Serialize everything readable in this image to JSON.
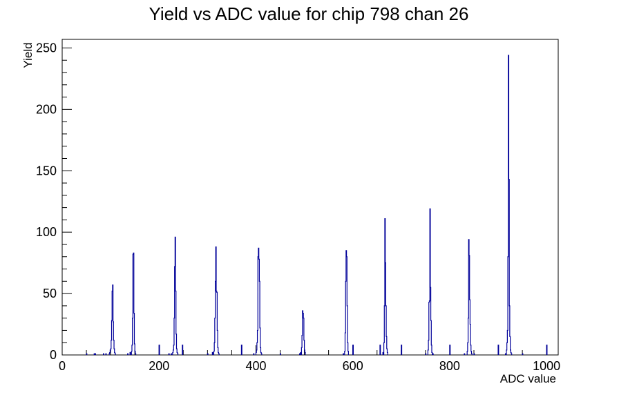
{
  "chart_data": {
    "type": "histogram",
    "title": "Yield vs ADC value for chip 798 chan 26",
    "xlabel": "ADC value",
    "ylabel": "Yield",
    "xlim": [
      0,
      1024
    ],
    "ylim": [
      0,
      257
    ],
    "x_ticks": [
      0,
      200,
      400,
      600,
      800,
      1000
    ],
    "y_ticks": [
      0,
      50,
      100,
      150,
      200,
      250
    ],
    "grid": false,
    "line_color": "#000099",
    "bins": [
      [
        50,
        1
      ],
      [
        66,
        1
      ],
      [
        68,
        1
      ],
      [
        85,
        1
      ],
      [
        90,
        1
      ],
      [
        97,
        1
      ],
      [
        98,
        2
      ],
      [
        99,
        4
      ],
      [
        100,
        5
      ],
      [
        101,
        12
      ],
      [
        102,
        28
      ],
      [
        103,
        52
      ],
      [
        104,
        57
      ],
      [
        105,
        27
      ],
      [
        106,
        12
      ],
      [
        107,
        5
      ],
      [
        108,
        2
      ],
      [
        109,
        1
      ],
      [
        135,
        1
      ],
      [
        140,
        2
      ],
      [
        143,
        3
      ],
      [
        144,
        8
      ],
      [
        145,
        30
      ],
      [
        146,
        82
      ],
      [
        147,
        83
      ],
      [
        148,
        34
      ],
      [
        149,
        9
      ],
      [
        150,
        3
      ],
      [
        151,
        1
      ],
      [
        200,
        8
      ],
      [
        220,
        1
      ],
      [
        225,
        1
      ],
      [
        228,
        2
      ],
      [
        229,
        4
      ],
      [
        230,
        8
      ],
      [
        231,
        30
      ],
      [
        232,
        72
      ],
      [
        233,
        96
      ],
      [
        234,
        52
      ],
      [
        235,
        17
      ],
      [
        236,
        5
      ],
      [
        237,
        2
      ],
      [
        238,
        1
      ],
      [
        248,
        8
      ],
      [
        300,
        1
      ],
      [
        310,
        2
      ],
      [
        313,
        3
      ],
      [
        314,
        10
      ],
      [
        315,
        30
      ],
      [
        316,
        60
      ],
      [
        317,
        88
      ],
      [
        318,
        52
      ],
      [
        319,
        51
      ],
      [
        320,
        20
      ],
      [
        321,
        6
      ],
      [
        322,
        2
      ],
      [
        323,
        1
      ],
      [
        370,
        8
      ],
      [
        395,
        1
      ],
      [
        400,
        2
      ],
      [
        401,
        4
      ],
      [
        402,
        10
      ],
      [
        403,
        20
      ],
      [
        404,
        80
      ],
      [
        405,
        87
      ],
      [
        406,
        78
      ],
      [
        407,
        60
      ],
      [
        408,
        22
      ],
      [
        409,
        6
      ],
      [
        410,
        2
      ],
      [
        411,
        1
      ],
      [
        450,
        1
      ],
      [
        490,
        1
      ],
      [
        492,
        2
      ],
      [
        494,
        6
      ],
      [
        495,
        16
      ],
      [
        496,
        36
      ],
      [
        497,
        34
      ],
      [
        498,
        30
      ],
      [
        499,
        12
      ],
      [
        500,
        4
      ],
      [
        501,
        2
      ],
      [
        580,
        1
      ],
      [
        583,
        3
      ],
      [
        584,
        18
      ],
      [
        585,
        60
      ],
      [
        586,
        85
      ],
      [
        587,
        80
      ],
      [
        588,
        40
      ],
      [
        589,
        10
      ],
      [
        590,
        3
      ],
      [
        600,
        8
      ],
      [
        656,
        8
      ],
      [
        662,
        2
      ],
      [
        664,
        10
      ],
      [
        665,
        40
      ],
      [
        666,
        111
      ],
      [
        667,
        75
      ],
      [
        668,
        40
      ],
      [
        669,
        15
      ],
      [
        670,
        5
      ],
      [
        671,
        2
      ],
      [
        700,
        8
      ],
      [
        750,
        1
      ],
      [
        755,
        4
      ],
      [
        756,
        12
      ],
      [
        757,
        43
      ],
      [
        758,
        44
      ],
      [
        759,
        119
      ],
      [
        760,
        55
      ],
      [
        761,
        28
      ],
      [
        762,
        8
      ],
      [
        763,
        2
      ],
      [
        765,
        1
      ],
      [
        800,
        8
      ],
      [
        830,
        1
      ],
      [
        836,
        3
      ],
      [
        837,
        10
      ],
      [
        838,
        30
      ],
      [
        839,
        94
      ],
      [
        840,
        81
      ],
      [
        841,
        45
      ],
      [
        842,
        25
      ],
      [
        843,
        8
      ],
      [
        844,
        3
      ],
      [
        845,
        1
      ],
      [
        850,
        1
      ],
      [
        900,
        8
      ],
      [
        915,
        1
      ],
      [
        917,
        4
      ],
      [
        918,
        10
      ],
      [
        919,
        20
      ],
      [
        920,
        80
      ],
      [
        921,
        244
      ],
      [
        922,
        143
      ],
      [
        923,
        40
      ],
      [
        924,
        15
      ],
      [
        925,
        4
      ],
      [
        926,
        2
      ],
      [
        927,
        1
      ],
      [
        950,
        1
      ],
      [
        1000,
        8
      ]
    ]
  }
}
